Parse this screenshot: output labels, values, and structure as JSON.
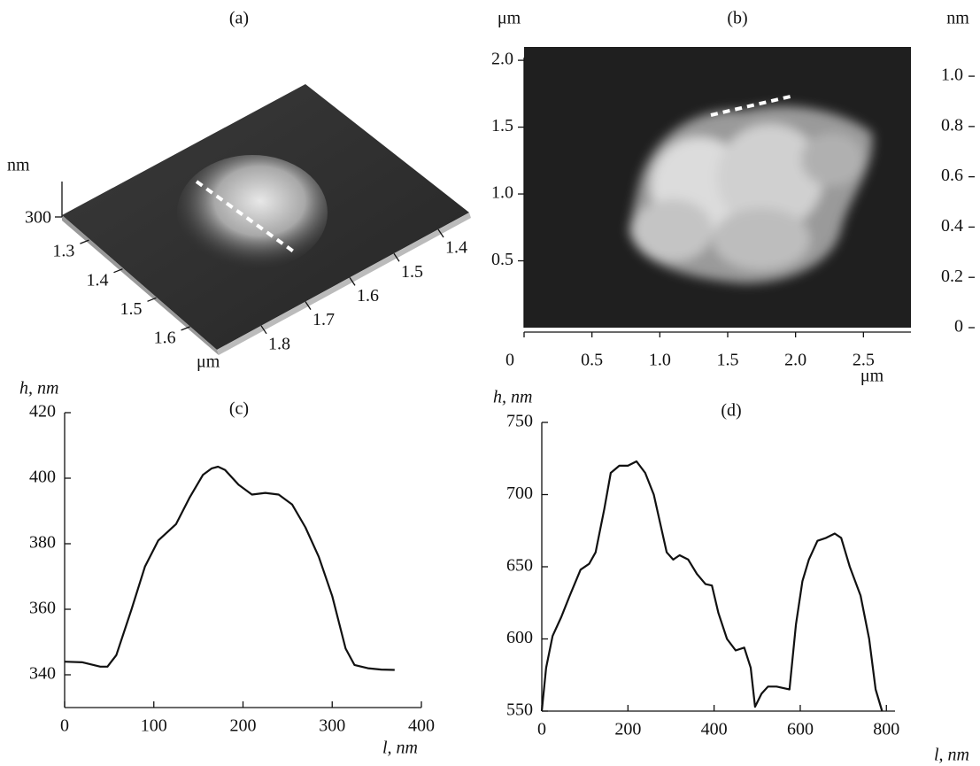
{
  "chart_data": [
    {
      "type": "surface",
      "title": "(a)",
      "zlabel": "nm",
      "zticks": [
        300
      ],
      "xticks": [
        1.3,
        1.4,
        1.5,
        1.6
      ],
      "xlim": [
        1.22,
        1.68
      ],
      "yticks": [
        1.4,
        1.5,
        1.6,
        1.7,
        1.8
      ],
      "ylim": [
        1.9,
        1.33
      ],
      "xlabel": "μm"
    },
    {
      "type": "image",
      "title": "(b)",
      "ylabel": "μm",
      "xlabel": "μm",
      "xlim": [
        0,
        2.85
      ],
      "xticks": [
        0,
        0.5,
        {
          "value": 1,
          "label": "1.0"
        },
        1.5,
        {
          "value": 2,
          "label": "2.0"
        },
        2.5
      ],
      "ylim": [
        0,
        2.1
      ],
      "yticks": [
        0.5,
        {
          "value": 1,
          "label": "1.0"
        },
        1.5,
        {
          "value": 2,
          "label": "2.0"
        }
      ],
      "colorbar_label": "nm",
      "clim": [
        0,
        1.12
      ],
      "cticks": [
        0,
        0.2,
        0.4,
        0.6,
        0.8,
        {
          "value": 1,
          "label": "1.0"
        }
      ]
    },
    {
      "type": "line",
      "title": "(c)",
      "ylabel": "h, nm",
      "xlabel": "l, nm",
      "x": [
        0,
        20,
        40,
        48,
        58,
        75,
        90,
        105,
        125,
        140,
        155,
        165,
        172,
        180,
        195,
        210,
        225,
        240,
        255,
        270,
        285,
        300,
        315,
        325,
        340,
        355,
        370
      ],
      "values": [
        344,
        343.8,
        342.5,
        342.5,
        346,
        360,
        373,
        381,
        386,
        394,
        401,
        403,
        403.5,
        402.5,
        398,
        395,
        395.5,
        395,
        392,
        385,
        376,
        364,
        348,
        343,
        342,
        341.6,
        341.5
      ],
      "xlim": [
        0,
        400
      ],
      "xticks": [
        0,
        100,
        200,
        300,
        400
      ],
      "ylim": [
        330,
        420
      ],
      "yticks": [
        340,
        360,
        380,
        400,
        420
      ]
    },
    {
      "type": "line",
      "title": "(d)",
      "ylabel": "h, nm",
      "xlabel": "l, nm",
      "x": [
        0,
        10,
        25,
        45,
        65,
        90,
        110,
        125,
        145,
        160,
        180,
        200,
        220,
        240,
        260,
        275,
        290,
        305,
        320,
        340,
        360,
        380,
        395,
        410,
        430,
        450,
        470,
        485,
        495,
        510,
        525,
        545,
        575,
        590,
        605,
        620,
        640,
        660,
        680,
        695,
        715,
        740,
        760,
        775,
        790
      ],
      "values": [
        550,
        580,
        602,
        615,
        630,
        648,
        652,
        660,
        690,
        715,
        720,
        720,
        723,
        715,
        700,
        680,
        660,
        655,
        658,
        655,
        645,
        638,
        637,
        618,
        600,
        592,
        594,
        580,
        553,
        562,
        567,
        567,
        565,
        610,
        640,
        655,
        668,
        670,
        673,
        670,
        650,
        630,
        600,
        565,
        550
      ],
      "xlim": [
        0,
        820
      ],
      "xticks": [
        0,
        200,
        400,
        600,
        800
      ],
      "ylim": [
        550,
        750
      ],
      "yticks": [
        550,
        600,
        650,
        700,
        750
      ]
    }
  ]
}
